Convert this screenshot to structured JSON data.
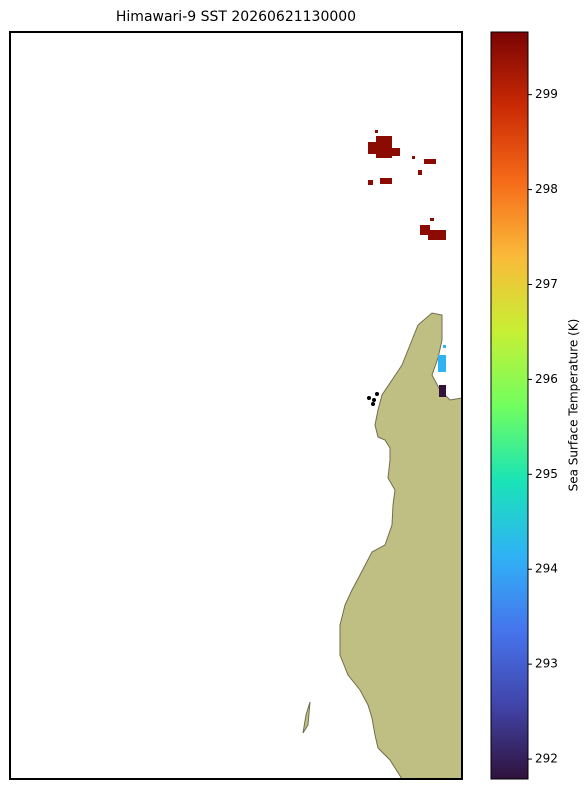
{
  "title": "Himawari-9 SST 20260621130000",
  "colorbar": {
    "label": "Sea Surface Temperature (K)",
    "lim": [
      291.79,
      299.66
    ],
    "ticks": [
      292,
      293,
      294,
      295,
      296,
      297,
      298,
      299
    ]
  }
}
